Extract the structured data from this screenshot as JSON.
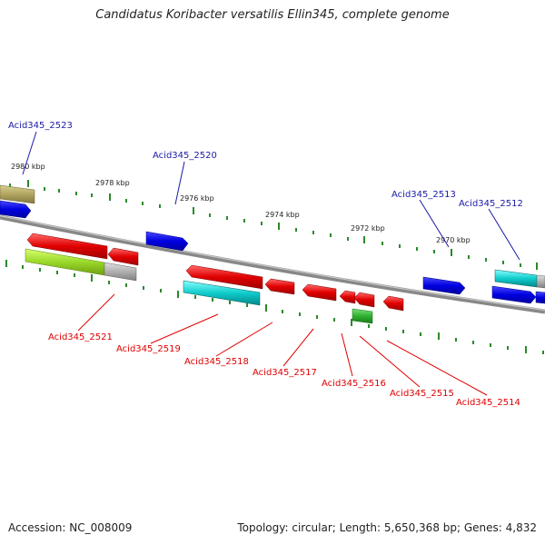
{
  "title": "Candidatus Koribacter versatilis Ellin345, complete genome",
  "footer": {
    "accession": "Accession: NC_008009",
    "summary": "Topology: circular; Length: 5,650,368 bp; Genes: 4,832"
  },
  "colors": {
    "top_label": "#1a1aa6",
    "bottom_label": "#e00000",
    "tick": "#2a8a2a",
    "backbone": "#808080"
  },
  "tick_labels": [
    "2980 kbp",
    "2978 kbp",
    "2976 kbp",
    "2974 kbp",
    "2972 kbp",
    "2970 kbp"
  ],
  "gene_labels_top": [
    "Acid345_2523",
    "Acid345_2520",
    "Acid345_2513",
    "Acid345_2512"
  ],
  "gene_labels_bottom": [
    "Acid345_2521",
    "Acid345_2519",
    "Acid345_2518",
    "Acid345_2517",
    "Acid345_2516",
    "Acid345_2515",
    "Acid345_2514"
  ]
}
